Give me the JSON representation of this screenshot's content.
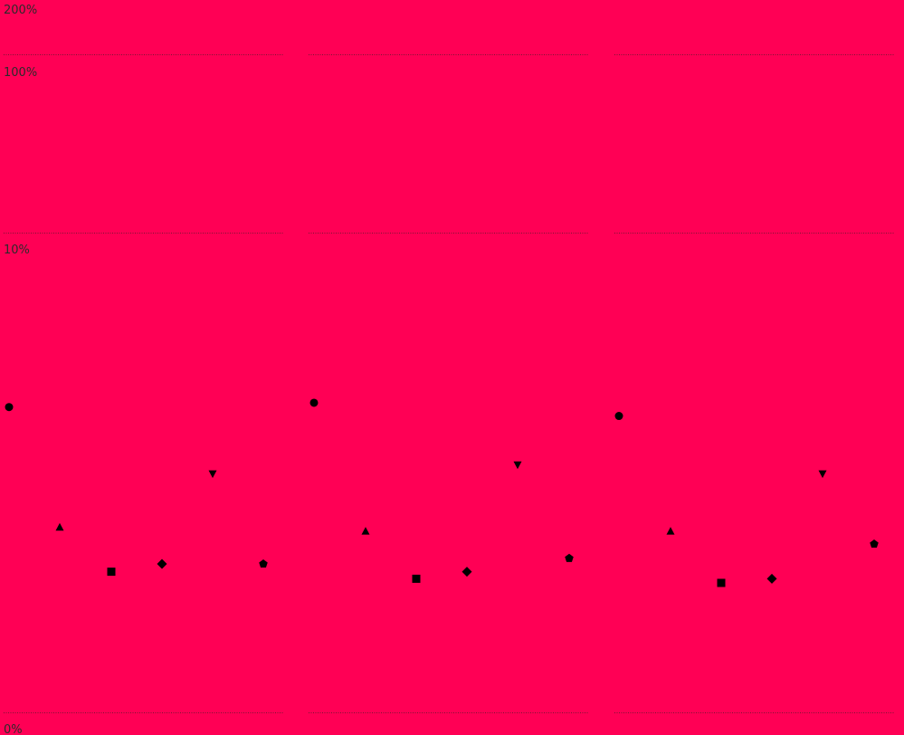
{
  "colors": {
    "background": "#ff0055",
    "marker": "#000000",
    "gridline": "#5a1a2a",
    "tick_text": "#2b2b2b"
  },
  "chart_data": {
    "type": "scatter",
    "y_scale": "log-like (0%, 10%, 100%, 200%)",
    "y_tick_labels": [
      "200%",
      "100%",
      "10%",
      "0%"
    ],
    "y_ticks": [
      {
        "label": "200%",
        "value": 200
      },
      {
        "label": "100%",
        "value": 100
      },
      {
        "label": "10%",
        "value": 10
      },
      {
        "label": "0%",
        "value": 0
      }
    ],
    "grid": true,
    "legend": "none",
    "marker_shapes": [
      "circle",
      "triangle-up",
      "square",
      "diamond",
      "triangle-down",
      "pentagon"
    ],
    "panels": [
      {
        "values": [
          3.6,
          1.52,
          1.02,
          1.1,
          2.3,
          1.1
        ]
      },
      {
        "values": [
          3.7,
          1.47,
          0.95,
          1.02,
          2.45,
          1.16
        ]
      },
      {
        "values": [
          3.4,
          1.47,
          0.91,
          0.95,
          2.3,
          1.32
        ]
      }
    ]
  }
}
